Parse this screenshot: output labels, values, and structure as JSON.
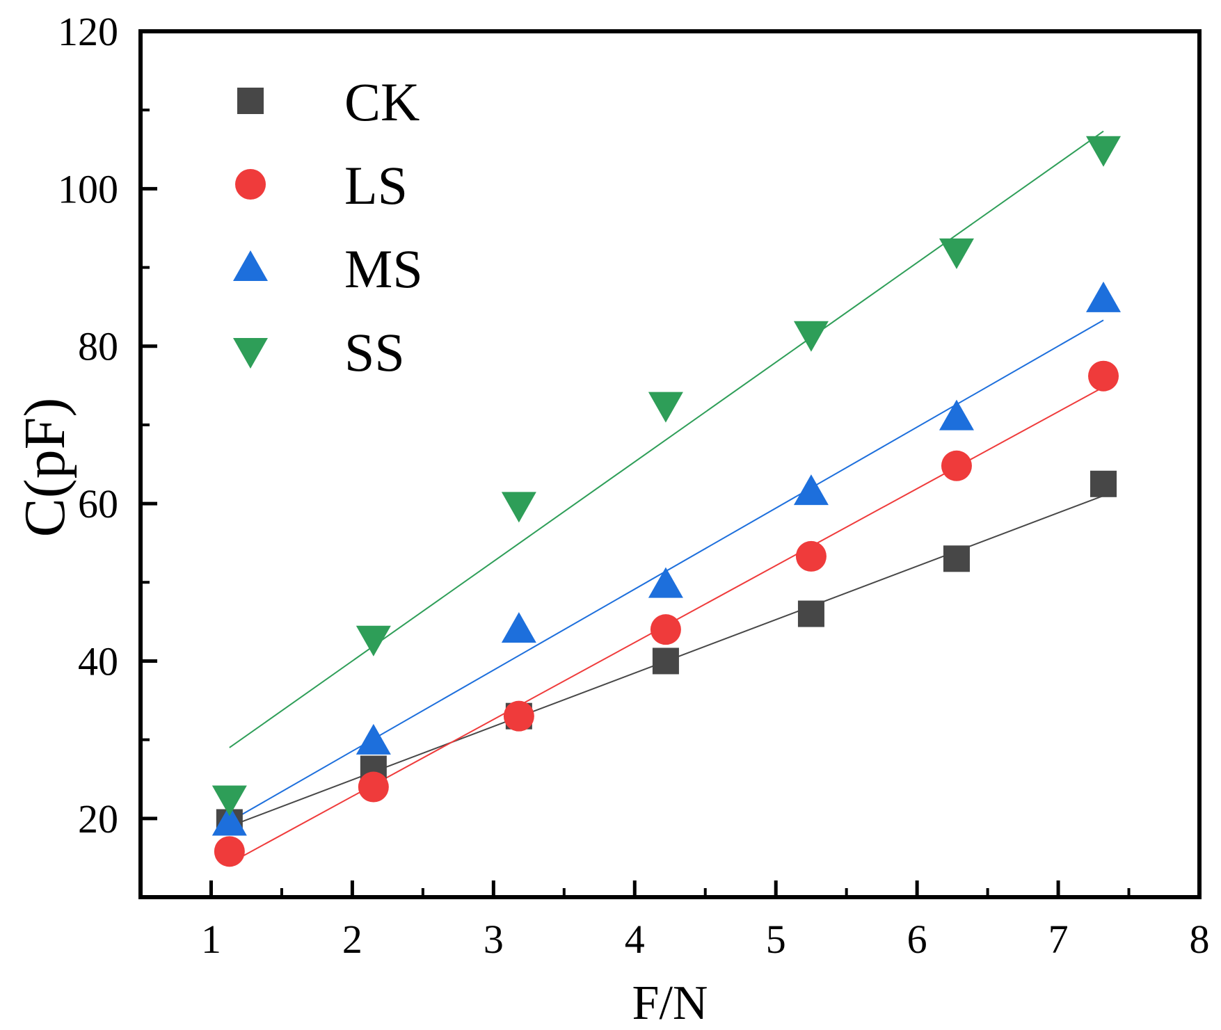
{
  "chart_data": {
    "type": "scatter",
    "title": "",
    "xlabel": "F/N",
    "ylabel": "C(pF)",
    "xlim": [
      0.5,
      8
    ],
    "ylim": [
      10,
      120
    ],
    "x_ticks": [
      1,
      2,
      3,
      4,
      5,
      6,
      7,
      8
    ],
    "y_ticks": [
      20,
      40,
      60,
      80,
      100,
      120
    ],
    "legend_position": "top-left",
    "grid": false,
    "series": [
      {
        "name": "CK",
        "marker": "square",
        "color": "#474747",
        "x": [
          1.13,
          2.15,
          3.18,
          4.22,
          5.25,
          6.28,
          7.32
        ],
        "y": [
          19.5,
          26.3,
          33.0,
          40.0,
          46.0,
          53.0,
          62.5
        ],
        "fit": {
          "x": [
            1.13,
            7.32
          ],
          "y": [
            19.0,
            61.0
          ]
        }
      },
      {
        "name": "LS",
        "marker": "circle",
        "color": "#ef3b3b",
        "x": [
          1.13,
          2.15,
          3.18,
          4.22,
          5.25,
          6.28,
          7.32
        ],
        "y": [
          15.8,
          24.0,
          33.0,
          44.0,
          53.3,
          64.8,
          76.2
        ],
        "fit": {
          "x": [
            1.13,
            7.32
          ],
          "y": [
            14.3,
            74.8
          ]
        }
      },
      {
        "name": "MS",
        "marker": "triangle-up",
        "color": "#1d6fdc",
        "x": [
          1.13,
          2.15,
          3.18,
          4.22,
          5.25,
          6.28,
          7.32
        ],
        "y": [
          19.5,
          29.8,
          44.0,
          49.7,
          61.5,
          71.0,
          86.0
        ],
        "fit": {
          "x": [
            1.13,
            7.32
          ],
          "y": [
            19.6,
            83.3
          ]
        }
      },
      {
        "name": "SS",
        "marker": "triangle-down",
        "color": "#2e9e58",
        "x": [
          1.13,
          2.15,
          3.18,
          4.22,
          5.25,
          6.28,
          7.32
        ],
        "y": [
          22.5,
          42.8,
          59.8,
          72.5,
          81.5,
          92.0,
          105.0
        ],
        "fit": {
          "x": [
            1.13,
            7.32
          ],
          "y": [
            29.0,
            107.3
          ]
        }
      }
    ]
  }
}
